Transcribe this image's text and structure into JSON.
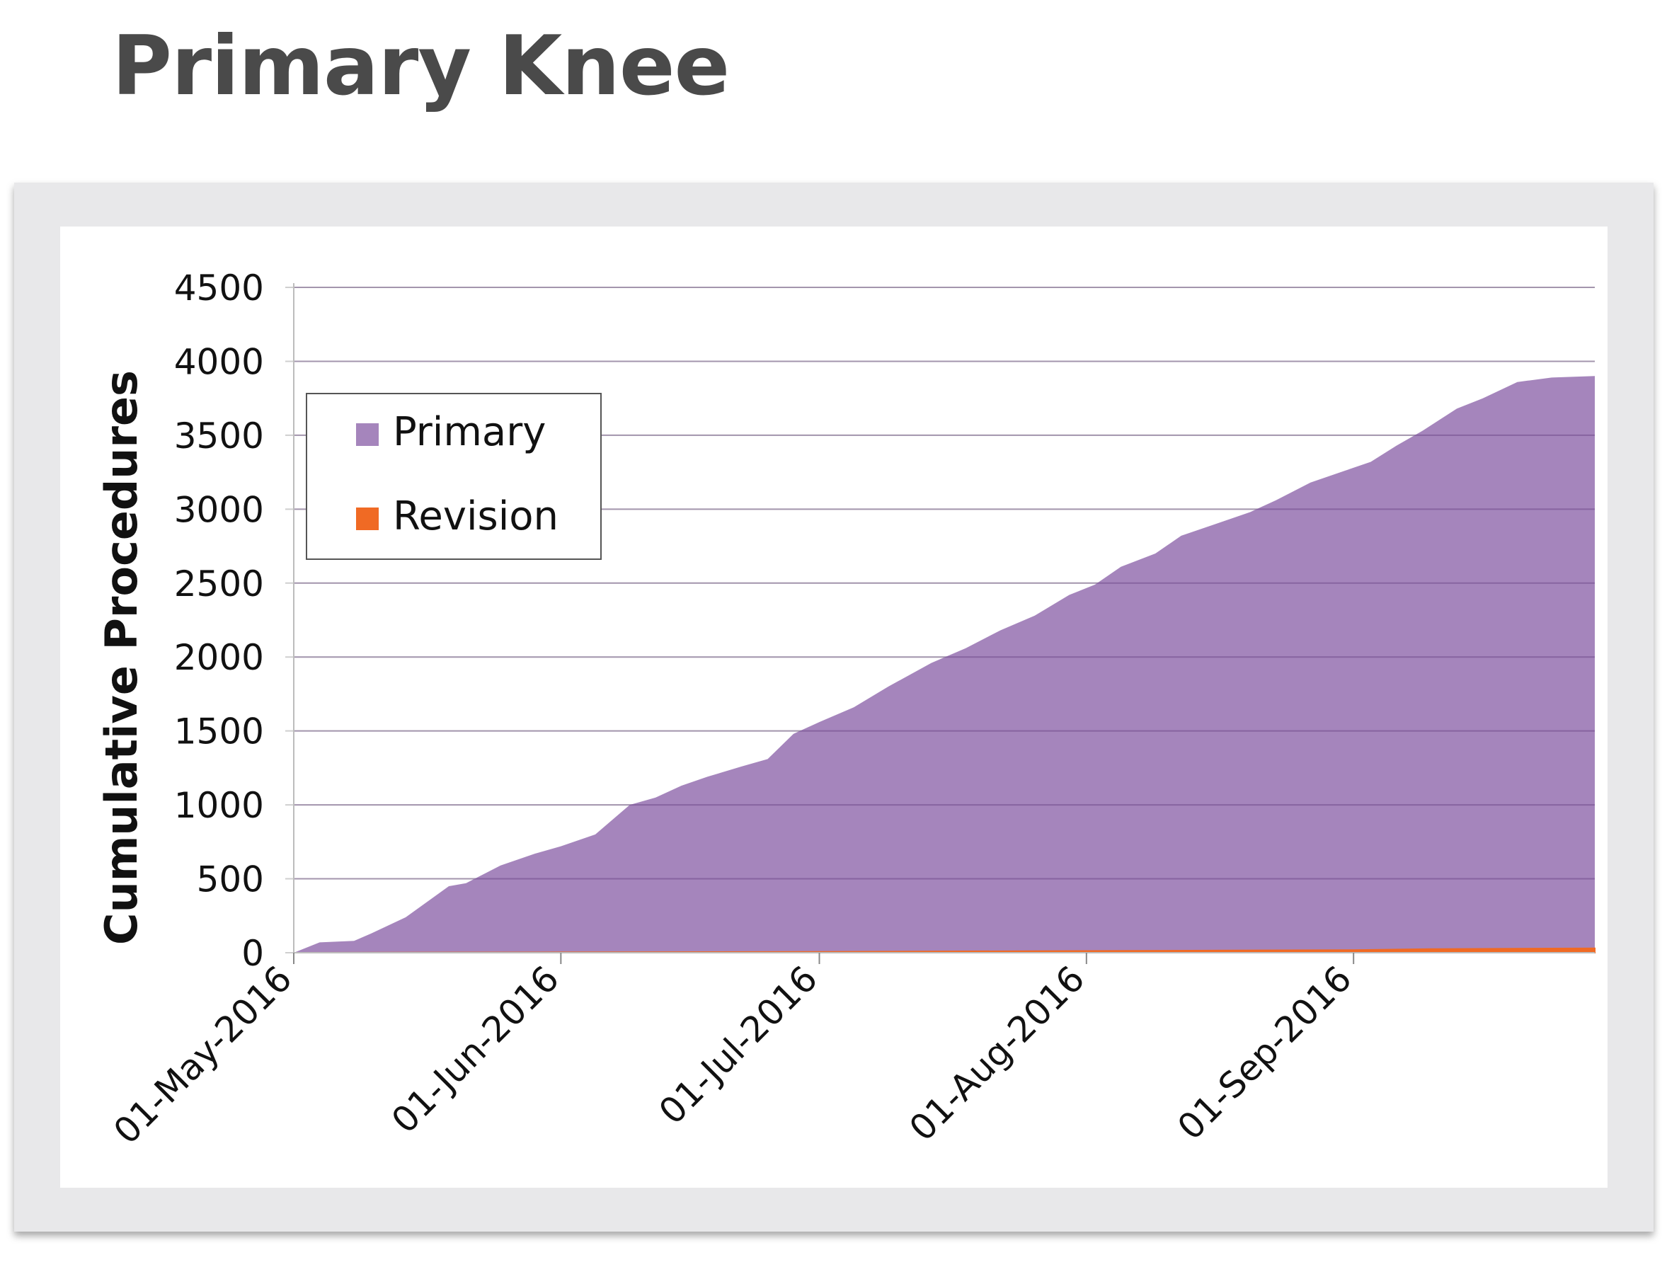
{
  "title": "Primary Knee",
  "colors": {
    "primary": "#a585bc",
    "revision": "#f06a24",
    "title": "#4a4a4a"
  },
  "chart_data": {
    "type": "area",
    "title": "Primary Knee",
    "ylabel": "Cumulative Procedures",
    "xlabel": "",
    "ylim": [
      0,
      4500
    ],
    "yticks": [
      0,
      500,
      1000,
      1500,
      2000,
      2500,
      3000,
      3500,
      4000,
      4500
    ],
    "xlim": [
      "2016-05-01",
      "2016-09-29"
    ],
    "xticks": [
      {
        "date": "2016-05-01",
        "label": "01-May-2016"
      },
      {
        "date": "2016-06-01",
        "label": "01-Jun-2016"
      },
      {
        "date": "2016-07-01",
        "label": "01-Jul-2016"
      },
      {
        "date": "2016-08-01",
        "label": "01-Aug-2016"
      },
      {
        "date": "2016-09-01",
        "label": "01-Sep-2016"
      }
    ],
    "grid": true,
    "legend": "top-left",
    "series": [
      {
        "name": "Primary",
        "color": "#a585bc",
        "points": [
          [
            "2016-05-01",
            0
          ],
          [
            "2016-05-04",
            70
          ],
          [
            "2016-05-08",
            80
          ],
          [
            "2016-05-10",
            130
          ],
          [
            "2016-05-14",
            240
          ],
          [
            "2016-05-19",
            450
          ],
          [
            "2016-05-21",
            470
          ],
          [
            "2016-05-25",
            590
          ],
          [
            "2016-05-29",
            670
          ],
          [
            "2016-06-01",
            720
          ],
          [
            "2016-06-05",
            800
          ],
          [
            "2016-06-09",
            1000
          ],
          [
            "2016-06-12",
            1050
          ],
          [
            "2016-06-15",
            1130
          ],
          [
            "2016-06-18",
            1190
          ],
          [
            "2016-06-22",
            1260
          ],
          [
            "2016-06-25",
            1310
          ],
          [
            "2016-06-28",
            1480
          ],
          [
            "2016-07-01",
            1560
          ],
          [
            "2016-07-05",
            1660
          ],
          [
            "2016-07-09",
            1800
          ],
          [
            "2016-07-14",
            1960
          ],
          [
            "2016-07-18",
            2060
          ],
          [
            "2016-07-22",
            2180
          ],
          [
            "2016-07-26",
            2280
          ],
          [
            "2016-07-30",
            2420
          ],
          [
            "2016-08-02",
            2490
          ],
          [
            "2016-08-05",
            2610
          ],
          [
            "2016-08-09",
            2700
          ],
          [
            "2016-08-12",
            2820
          ],
          [
            "2016-08-16",
            2900
          ],
          [
            "2016-08-20",
            2980
          ],
          [
            "2016-08-23",
            3060
          ],
          [
            "2016-08-27",
            3180
          ],
          [
            "2016-08-31",
            3260
          ],
          [
            "2016-09-03",
            3320
          ],
          [
            "2016-09-06",
            3430
          ],
          [
            "2016-09-09",
            3530
          ],
          [
            "2016-09-13",
            3680
          ],
          [
            "2016-09-16",
            3750
          ],
          [
            "2016-09-20",
            3860
          ],
          [
            "2016-09-24",
            3890
          ],
          [
            "2016-09-29",
            3900
          ]
        ]
      },
      {
        "name": "Revision",
        "color": "#f06a24",
        "points": [
          [
            "2016-05-01",
            0
          ],
          [
            "2016-06-01",
            3
          ],
          [
            "2016-07-01",
            6
          ],
          [
            "2016-08-01",
            12
          ],
          [
            "2016-09-01",
            18
          ],
          [
            "2016-09-10",
            25
          ],
          [
            "2016-09-29",
            30
          ]
        ]
      }
    ]
  }
}
